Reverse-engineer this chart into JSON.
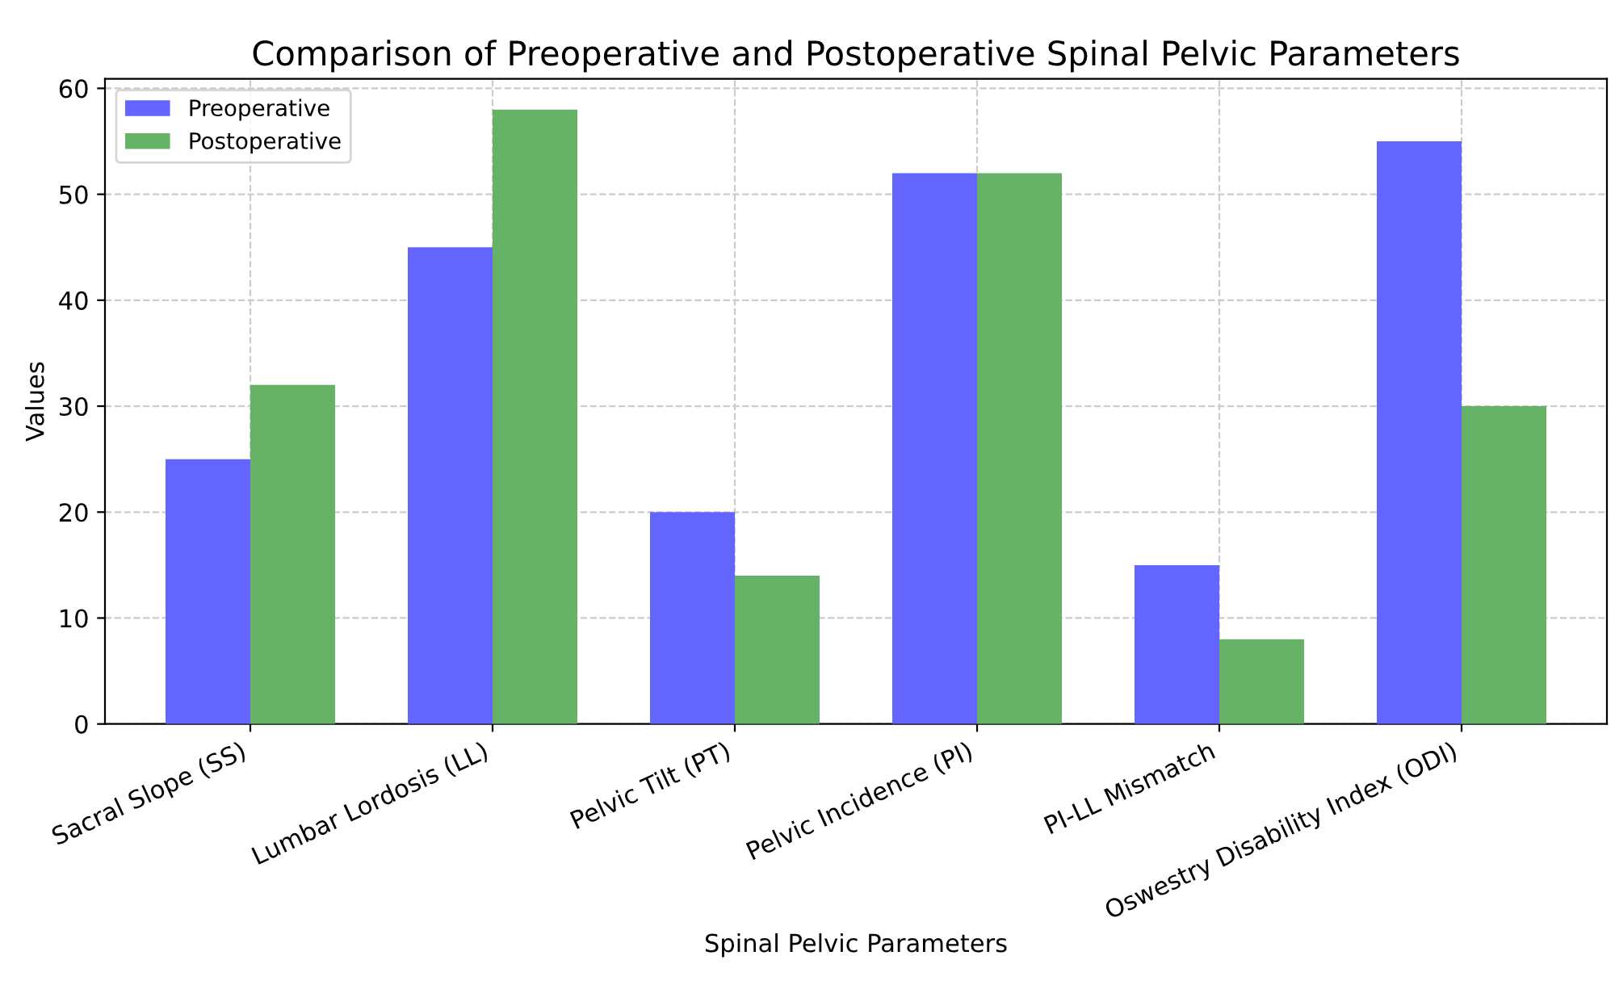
{
  "chart_data": {
    "type": "bar",
    "title": "Comparison of Preoperative and Postoperative Spinal Pelvic Parameters",
    "xlabel": "Spinal Pelvic Parameters",
    "ylabel": "Values",
    "categories": [
      "Sacral Slope (SS)",
      "Lumbar Lordosis (LL)",
      "Pelvic Tilt (PT)",
      "Pelvic Incidence (PI)",
      "PI-LL Mismatch",
      "Oswestry Disability Index (ODI)"
    ],
    "series": [
      {
        "name": "Preoperative",
        "color": "#6464ff",
        "values": [
          25,
          45,
          20,
          52,
          15,
          55
        ]
      },
      {
        "name": "Postoperative",
        "color": "#66b266",
        "values": [
          32,
          58,
          14,
          52,
          8,
          30
        ]
      }
    ],
    "ylim": [
      0,
      60.9
    ],
    "yticks": [
      0,
      10,
      20,
      30,
      40,
      50,
      60
    ],
    "grid": true,
    "legend": "top left"
  }
}
